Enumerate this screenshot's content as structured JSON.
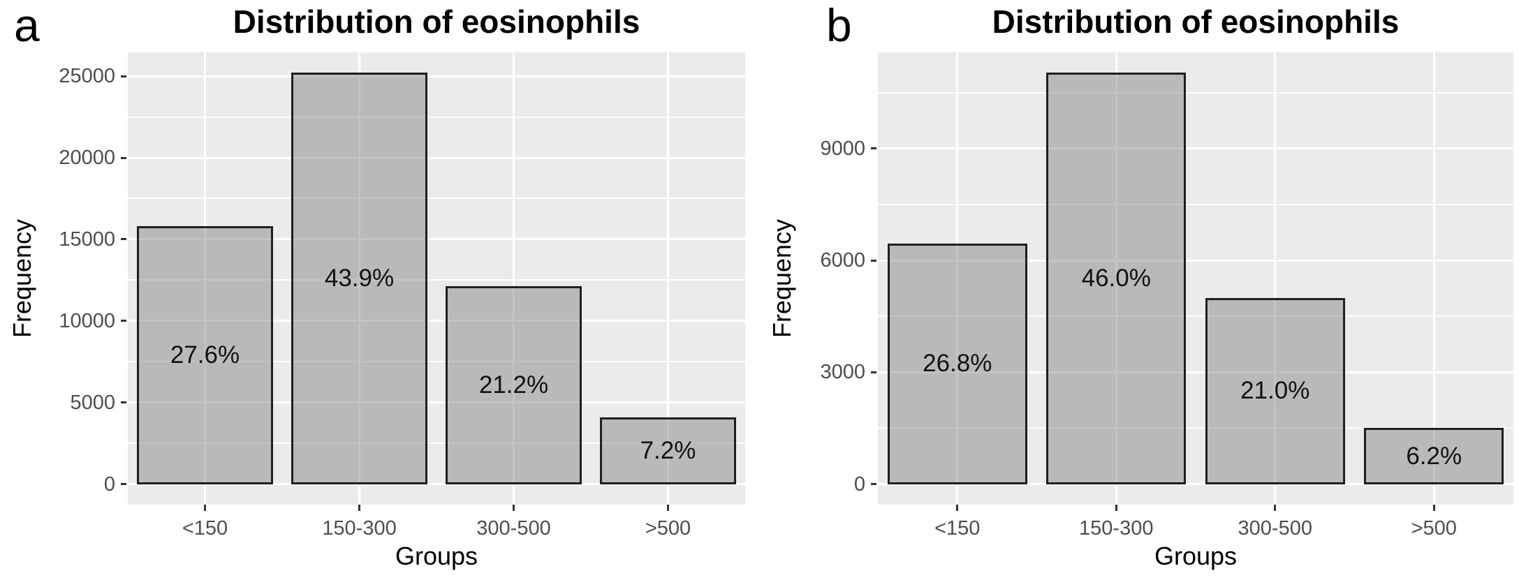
{
  "colors": {
    "panel_bg": "#ebebeb",
    "gridline": "#ffffff",
    "bar_fill_gray": "#b9b9b9",
    "bar_border": "#1f1f1f",
    "tick_label": "#4d4d4d",
    "text": "#000000"
  },
  "chart_data": [
    {
      "type": "bar",
      "panel_letter": "a",
      "title": "Distribution of eosinophils",
      "xlabel": "Groups",
      "ylabel": "Frequency",
      "categories": [
        "<150",
        "150-300",
        "300-500",
        ">500"
      ],
      "values": [
        15800,
        25200,
        12150,
        4100
      ],
      "bar_labels": [
        "27.6%",
        "43.9%",
        "21.2%",
        "7.2%"
      ],
      "yticks": [
        0,
        5000,
        10000,
        15000,
        20000,
        25000
      ],
      "ylim": [
        -1260,
        26460
      ],
      "grid": "major-and-minor-horizontal, major-vertical",
      "legend": "none"
    },
    {
      "type": "bar",
      "panel_letter": "b",
      "title": "Distribution of eosinophils",
      "xlabel": "Groups",
      "ylabel": "Frequency",
      "categories": [
        "<150",
        "150-300",
        "300-500",
        ">500"
      ],
      "values": [
        6450,
        11030,
        5000,
        1500
      ],
      "bar_labels": [
        "26.8%",
        "46.0%",
        "21.0%",
        "6.2%"
      ],
      "yticks": [
        0,
        3000,
        6000,
        9000
      ],
      "ylim": [
        -551,
        11582
      ],
      "grid": "major-and-minor-horizontal, major-vertical",
      "legend": "none"
    }
  ]
}
